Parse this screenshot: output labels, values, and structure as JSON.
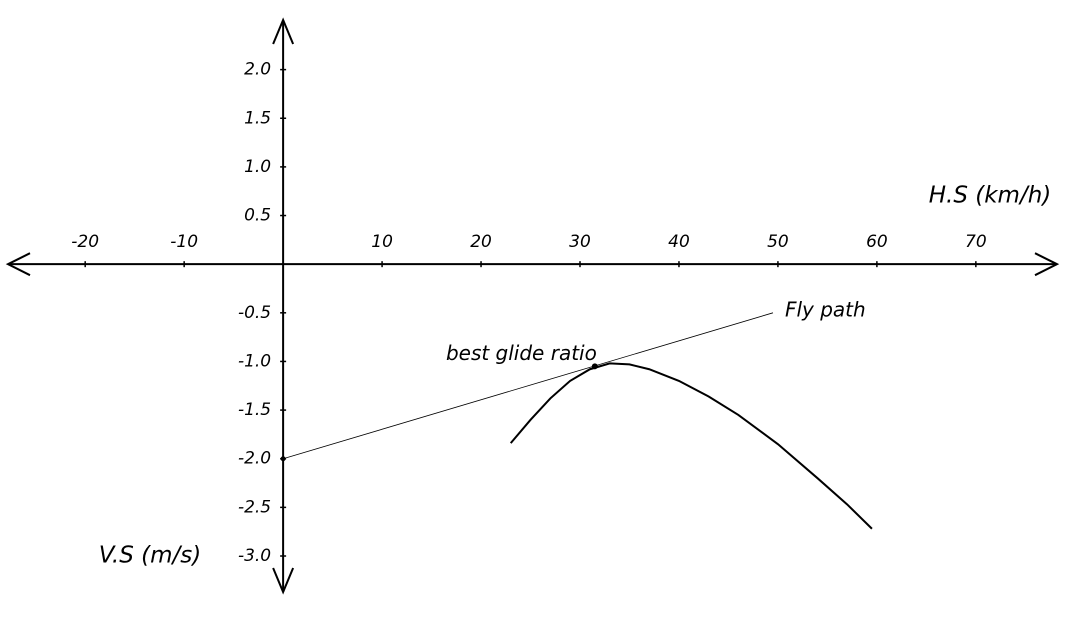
{
  "chart_data": {
    "type": "line",
    "x_label": "H.S (km/h)",
    "y_label": "V.S (m/s)",
    "xlim": [
      -27.8,
      78.2
    ],
    "ylim": [
      -3.37,
      2.51
    ],
    "xticks": [
      -20,
      -10,
      10,
      20,
      30,
      40,
      50,
      60,
      70
    ],
    "yticks": [
      {
        "value": 2,
        "label": "2.0"
      },
      1.5,
      {
        "value": 1,
        "label": "1.0"
      },
      0.5,
      -0.5,
      {
        "value": -1,
        "label": "-1.0"
      },
      -1.5,
      {
        "value": -2,
        "label": "-2.0"
      },
      -2.5,
      {
        "value": -3,
        "label": "-3.0"
      }
    ],
    "series": [
      {
        "color": "#000000",
        "x": [
          23,
          25,
          27,
          29,
          31,
          33,
          35,
          37,
          40,
          43,
          46,
          50,
          54,
          57,
          59.5
        ],
        "values": [
          -1.84,
          -1.6,
          -1.38,
          -1.2,
          -1.08,
          -1.02,
          -1.03,
          -1.08,
          -1.2,
          -1.36,
          -1.55,
          -1.85,
          -2.2,
          -2.47,
          -2.72
        ]
      },
      {
        "name": "Fly path",
        "color": "#000000",
        "x": [
          0,
          49.5
        ],
        "values": [
          -2.0,
          -0.5
        ]
      }
    ],
    "annotations": [
      {
        "text": "best glide ratio",
        "x": 31.5,
        "y": -1.05
      }
    ]
  }
}
